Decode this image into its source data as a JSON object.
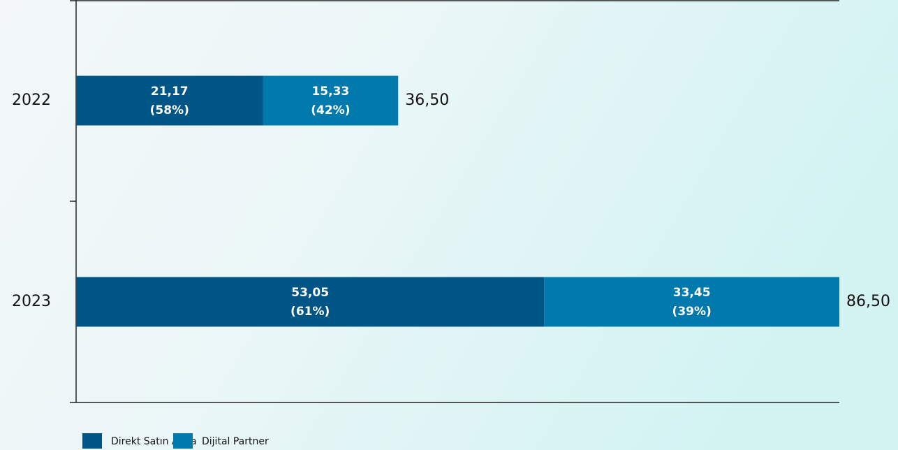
{
  "chart_data": {
    "type": "stacked-bar-horizontal",
    "categories": [
      "2022",
      "2023"
    ],
    "series": [
      {
        "name": "Direkt Satın Alma",
        "color": "#005587",
        "values": [
          21.17,
          53.05
        ],
        "value_labels": [
          "21,17",
          "53,05"
        ],
        "share_labels": [
          "(58%)",
          "(61%)"
        ]
      },
      {
        "name": "Dijital Partner",
        "color": "#0079ad",
        "values": [
          15.33,
          33.45
        ],
        "value_labels": [
          "15,33",
          "33,45"
        ],
        "share_labels": [
          "(42%)",
          "(39%)"
        ]
      }
    ],
    "totals": [
      36.5,
      86.5
    ],
    "total_labels": [
      "36,50",
      "86,50"
    ],
    "xlim": [
      0,
      86.5
    ]
  }
}
